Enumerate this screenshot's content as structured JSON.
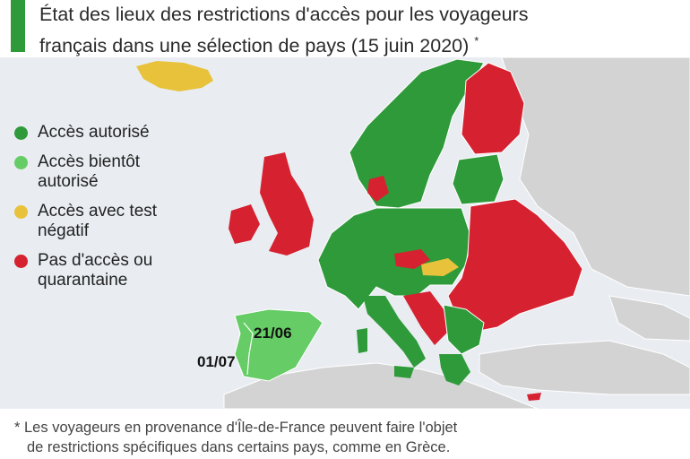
{
  "header": {
    "title_line1": "État des lieux des restrictions d'accès pour les voyageurs",
    "title_line2": "français dans une sélection de pays (15 juin 2020)",
    "title_mark": "*"
  },
  "legend": [
    {
      "label_line1": "Accès autorisé",
      "label_line2": "",
      "color": "#2f9a3a"
    },
    {
      "label_line1": "Accès bientôt",
      "label_line2": "autorisé",
      "color": "#66cc66"
    },
    {
      "label_line1": "Accès avec test",
      "label_line2": "négatif",
      "color": "#e8c23a"
    },
    {
      "label_line1": "Pas d'accès ou",
      "label_line2": "quarantaine",
      "color": "#d62130"
    }
  ],
  "map_labels": {
    "spain_date": "21/06",
    "portugal_date": "01/07"
  },
  "footnote": {
    "line1": "* Les voyageurs en provenance d'Île-de-France peuvent faire l'objet",
    "line2": "de restrictions spécifiques dans certains pays, comme en Grèce."
  }
}
